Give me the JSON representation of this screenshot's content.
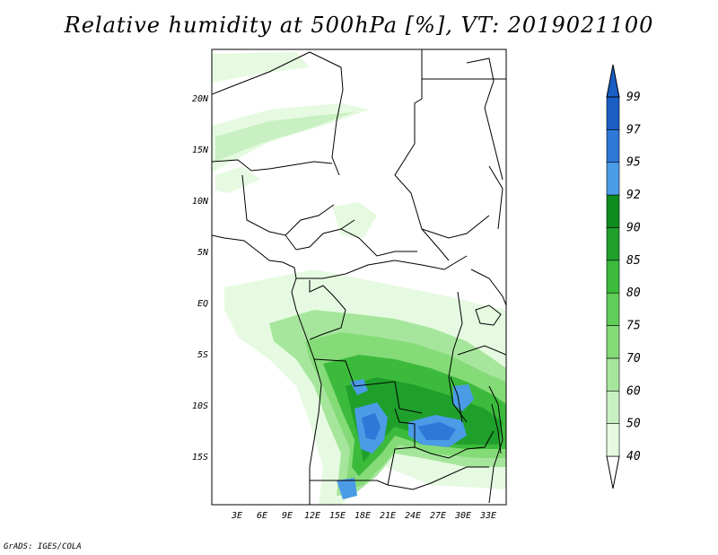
{
  "title": "Relative humidity at 500hPa [%], VT: 2019021100",
  "credit": "GrADS: IGES/COLA",
  "lat_ticks": [
    "20N",
    "15N",
    "10N",
    "5N",
    "EQ",
    "5S",
    "10S",
    "15S"
  ],
  "lon_ticks": [
    "3E",
    "6E",
    "9E",
    "12E",
    "15E",
    "18E",
    "21E",
    "24E",
    "27E",
    "30E",
    "33E"
  ],
  "colorbar": {
    "levels": [
      "40",
      "50",
      "60",
      "70",
      "75",
      "80",
      "85",
      "90",
      "92",
      "95",
      "97",
      "99"
    ],
    "colors": [
      "#ffffff",
      "#e6fae1",
      "#c8f0c2",
      "#a6e69c",
      "#85db78",
      "#5fcd58",
      "#3cba3c",
      "#1fa02b",
      "#0f8c1e",
      "#4b9be6",
      "#2e78d8",
      "#1a5ec4"
    ]
  },
  "colors": {
    "frame": "#000000",
    "land_boundaries": "#000000"
  }
}
